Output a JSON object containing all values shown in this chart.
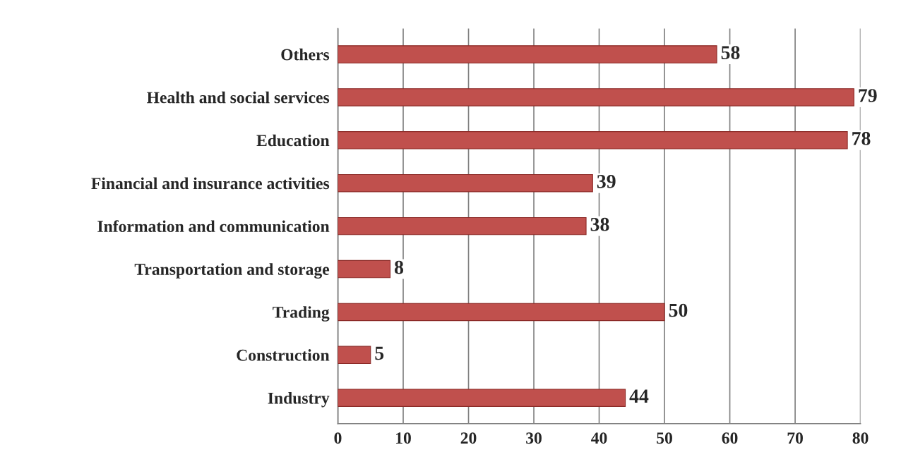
{
  "chart_data": {
    "type": "bar",
    "orientation": "horizontal",
    "categories": [
      "Others",
      "Health and social services",
      "Education",
      "Financial and insurance activities",
      "Information and communication",
      "Transportation and storage",
      "Trading",
      "Construction",
      "Industry"
    ],
    "values": [
      58,
      79,
      78,
      39,
      38,
      8,
      50,
      5,
      44
    ],
    "color": "#c0504d",
    "xlim": [
      0,
      80
    ],
    "xticks": [
      0,
      10,
      20,
      30,
      40,
      50,
      60,
      70,
      80
    ],
    "grid": "x",
    "data_labels": true
  }
}
